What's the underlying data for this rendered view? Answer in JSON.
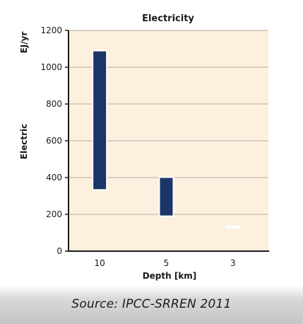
{
  "chart_data": {
    "type": "bar",
    "title": "Electricity",
    "xlabel": "Depth [km]",
    "ylabel": "Electric",
    "unit_label": "EJ/yr",
    "categories": [
      "10",
      "5",
      "3"
    ],
    "ranges": [
      {
        "low": 333,
        "high": 1090
      },
      {
        "low": 190,
        "high": 402
      },
      {
        "low": 128,
        "high": 135
      }
    ],
    "ylim": [
      0,
      1200
    ],
    "yticks": [
      "0",
      "200",
      "400",
      "600",
      "800",
      "1000",
      "1200"
    ],
    "ytick_values": [
      0,
      200,
      400,
      600,
      800,
      1000,
      1200
    ],
    "grid": true,
    "colors": {
      "plot_background": "#fdf0de",
      "bar_fill": "#1b3566",
      "gridline": "#b4aca4",
      "axis": "#1a1a1a"
    }
  },
  "caption": {
    "source": "Source: IPCC-SRREN 2011"
  }
}
